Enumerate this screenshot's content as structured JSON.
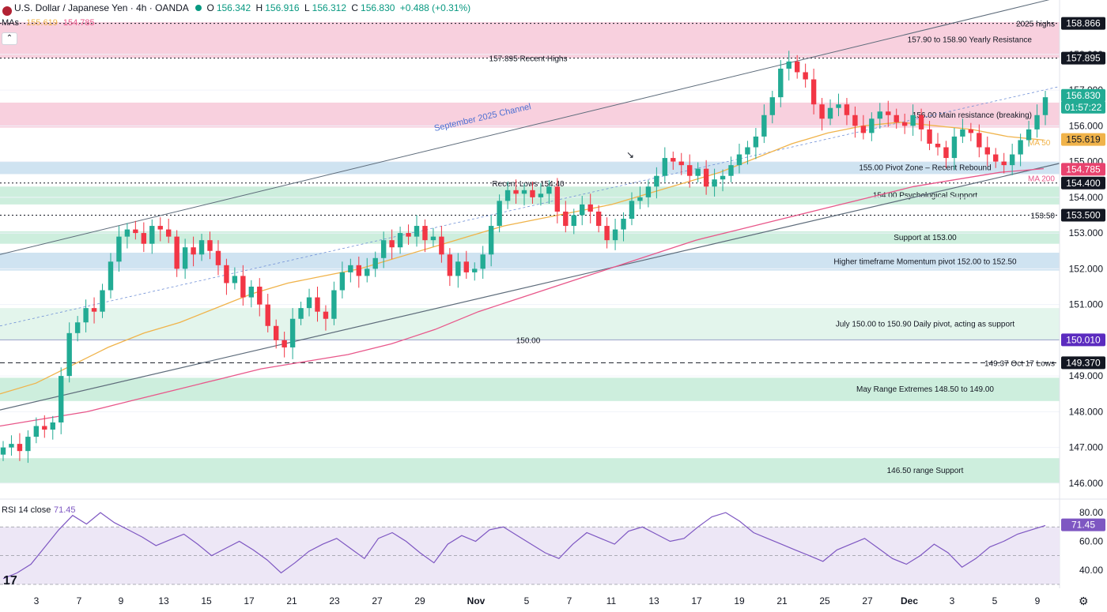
{
  "header": {
    "title": "U.S. Dollar / Japanese Yen · 4h · OANDA",
    "o_label": "O",
    "o_value": "156.342",
    "h_label": "H",
    "h_value": "156.916",
    "l_label": "L",
    "l_value": "156.312",
    "c_label": "C",
    "c_value": "156.830",
    "change": "+0.488 (+0.31%)",
    "mas_label": "MAs",
    "ma50_value": "155.619",
    "ma200_value": "154.785",
    "collapse_icon": "chevron-up-icon"
  },
  "colors": {
    "up": "#22ab94",
    "down": "#f23645",
    "ma50": "#f0b34a",
    "ma200": "#e8578a",
    "resistance_zone": "#f8d0de",
    "support_zone": "#cdeedd",
    "pivot_zone": "#cfe3f1",
    "channel": "#5d6b7a",
    "rsi_line": "#7e57c2",
    "rsi_band": "#ede7f6"
  },
  "chart_data": [
    {
      "type": "line",
      "title": "U.S. Dollar / Japanese Yen · 4h · OANDA",
      "ylim": [
        145.6,
        159.3
      ],
      "x_tick_labels": [
        "3",
        "7",
        "9",
        "13",
        "15",
        "17",
        "21",
        "23",
        "27",
        "29",
        "Nov",
        "5",
        "7",
        "11",
        "13",
        "17",
        "19",
        "21",
        "25",
        "27",
        "Dec",
        "3",
        "5",
        "9"
      ],
      "y_tick_labels": [
        "146.000",
        "147.000",
        "148.000",
        "149.000",
        "151.000",
        "152.000",
        "153.000",
        "154.000",
        "155.000",
        "156.000",
        "157.000",
        "158.000"
      ],
      "price_tags": [
        {
          "label": "158.866",
          "style": "dark"
        },
        {
          "label": "157.895",
          "style": "dark"
        },
        {
          "label": "156.830",
          "style": "green"
        },
        {
          "label": "01:57:22",
          "style": "green"
        },
        {
          "label": "155.619",
          "style": "orange"
        },
        {
          "label": "154.785",
          "style": "pink"
        },
        {
          "label": "154.400",
          "style": "dark"
        },
        {
          "label": "153.500",
          "style": "dark"
        },
        {
          "label": "150.010",
          "style": "purple"
        },
        {
          "label": "149.370",
          "style": "dark"
        }
      ],
      "zones": [
        {
          "label": "157.90 to 158.90 Yearly Resistance",
          "from": 157.9,
          "to": 158.9,
          "kind": "resistance"
        },
        {
          "label": "156.00 Main resistance (breaking)",
          "from": 155.95,
          "to": 156.65,
          "kind": "resistance"
        },
        {
          "label": "155.00 Pivot Zone – Recent Rebound",
          "from": 154.65,
          "to": 155.0,
          "kind": "pivot"
        },
        {
          "label": "154.00 Psychological Support",
          "from": 153.8,
          "to": 154.3,
          "kind": "support"
        },
        {
          "label": "Support at 153.00",
          "from": 152.7,
          "to": 153.05,
          "kind": "support"
        },
        {
          "label": "Higher timeframe Momentum pivot 152.00 to 152.50",
          "from": 151.95,
          "to": 152.45,
          "kind": "pivot"
        },
        {
          "label": "July 150.00 to 150.90 Daily pivot, acting as support",
          "from": 150.0,
          "to": 150.9,
          "kind": "support_light"
        },
        {
          "label": "May Range Extremes 148.50 to 149.00",
          "from": 148.3,
          "to": 148.95,
          "kind": "support"
        },
        {
          "label": "146.50 range Support",
          "from": 146.0,
          "to": 146.7,
          "kind": "support"
        }
      ],
      "levels": [
        {
          "label": "2025 highs",
          "value": 158.866,
          "style": "dotted"
        },
        {
          "label": "157.895 Recent Highs",
          "value": 157.895,
          "style": "dotted"
        },
        {
          "label": "Recent Lows 154.40",
          "value": 154.4,
          "style": "dotted"
        },
        {
          "label": "153.50",
          "value": 153.5,
          "style": "dotted"
        },
        {
          "label": "150.00",
          "value": 150.01,
          "style": "solid"
        },
        {
          "label": "149.37 Oct 17 Lows",
          "value": 149.37,
          "style": "dashed"
        }
      ],
      "channel_label": "September 2025 Channel",
      "ma_labels": [
        "MA 50",
        "MA 200"
      ],
      "series": [
        {
          "name": "Close",
          "values": [
            147.0,
            147.1,
            146.9,
            147.3,
            147.6,
            147.5,
            147.7,
            149.0,
            150.2,
            150.5,
            150.9,
            150.8,
            151.4,
            152.2,
            152.9,
            153.1,
            153.0,
            152.7,
            153.2,
            153.1,
            152.9,
            152.0,
            152.6,
            152.4,
            152.8,
            152.5,
            152.1,
            151.6,
            151.8,
            151.2,
            151.5,
            151.0,
            150.4,
            150.0,
            149.8,
            150.6,
            150.9,
            151.2,
            150.8,
            150.6,
            151.4,
            151.9,
            152.1,
            151.8,
            152.0,
            152.3,
            152.8,
            152.6,
            153.0,
            152.9,
            153.2,
            152.8,
            152.9,
            152.4,
            151.8,
            152.2,
            151.9,
            152.0,
            152.4,
            153.2,
            153.9,
            154.2,
            154.1,
            154.2,
            154.0,
            154.1,
            154.3,
            153.6,
            153.2,
            153.5,
            153.8,
            153.6,
            153.2,
            152.8,
            153.1,
            153.4,
            153.9,
            154.0,
            154.3,
            154.6,
            155.1,
            155.0,
            154.9,
            154.6,
            154.8,
            154.3,
            154.5,
            154.6,
            154.9,
            155.2,
            155.4,
            155.7,
            156.3,
            156.8,
            157.6,
            157.8,
            157.5,
            157.3,
            156.6,
            156.2,
            156.5,
            156.6,
            156.3,
            156.0,
            155.8,
            156.2,
            156.4,
            156.3,
            156.1,
            156.0,
            156.3,
            155.9,
            155.5,
            155.4,
            155.1,
            155.7,
            155.9,
            155.8,
            155.4,
            155.2,
            155.0,
            154.9,
            155.2,
            155.6,
            155.9,
            156.3,
            156.8
          ]
        },
        {
          "name": "MA 50",
          "values": [
            148.5,
            148.8,
            149.3,
            149.8,
            150.2,
            150.5,
            150.9,
            151.3,
            151.6,
            151.8,
            152.0,
            152.3,
            152.6,
            152.9,
            153.2,
            153.4,
            153.6,
            153.8,
            154.1,
            154.4,
            154.7,
            155.1,
            155.5,
            155.8,
            156.0,
            156.1,
            156.0,
            155.9,
            155.7,
            155.6
          ]
        },
        {
          "name": "MA 200",
          "values": [
            147.6,
            147.8,
            148.0,
            148.3,
            148.6,
            148.9,
            149.2,
            149.4,
            149.6,
            149.9,
            150.3,
            150.8,
            151.2,
            151.6,
            152.0,
            152.4,
            152.8,
            153.1,
            153.4,
            153.7,
            154.0,
            154.3,
            154.5,
            154.7,
            154.8
          ]
        }
      ]
    },
    {
      "type": "line",
      "title": "RSI 14 close",
      "value_label": "71.45",
      "ylim": [
        30,
        85
      ],
      "y_tick_labels": [
        "80.00",
        "60.00",
        "40.00"
      ],
      "tag": "71.45",
      "series": [
        {
          "name": "RSI",
          "values": [
            34,
            38,
            44,
            56,
            68,
            78,
            72,
            80,
            73,
            68,
            63,
            57,
            61,
            65,
            58,
            50,
            55,
            60,
            54,
            47,
            38,
            45,
            53,
            58,
            62,
            55,
            48,
            62,
            66,
            60,
            52,
            45,
            58,
            64,
            60,
            68,
            70,
            64,
            58,
            52,
            48,
            58,
            66,
            62,
            58,
            67,
            70,
            65,
            60,
            62,
            70,
            77,
            80,
            74,
            66,
            62,
            58,
            54,
            50,
            46,
            54,
            58,
            62,
            55,
            48,
            44,
            50,
            58,
            52,
            42,
            48,
            56,
            60,
            65,
            68,
            71
          ]
        }
      ]
    }
  ],
  "footer": {
    "settings_icon": "gear-icon",
    "brand_icon": "tradingview-logo-icon"
  }
}
